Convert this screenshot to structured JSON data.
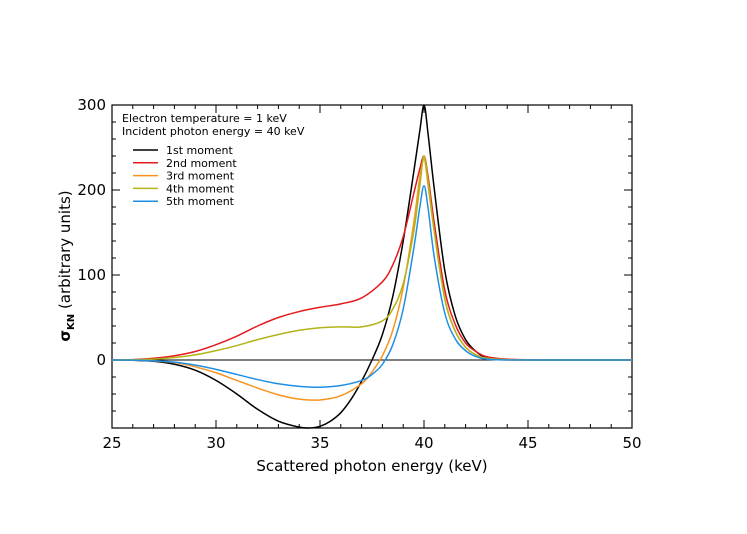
{
  "chart_data": {
    "type": "line",
    "xlabel": "Scattered photon energy (keV)",
    "ylabel": "σ",
    "ylabel_sub": "KN",
    "ylabel_rest": " (arbitrary units)",
    "xlim": [
      25,
      50
    ],
    "ylim": [
      -80,
      300
    ],
    "xticks": [
      25,
      30,
      35,
      40,
      45,
      50
    ],
    "yticks": [
      0,
      100,
      200,
      300
    ],
    "annotations": [
      "Electron temperature = 1 keV",
      "Incident photon energy = 40 keV"
    ],
    "zero_line": true,
    "grid": false,
    "legend_position": "top-left",
    "series": [
      {
        "name": "1st moment",
        "color": "#000000",
        "x": [
          25,
          26,
          27,
          28,
          29,
          30,
          31,
          32,
          33,
          34,
          34.5,
          35,
          35.5,
          36,
          36.5,
          37,
          37.5,
          38,
          38.5,
          39,
          39.5,
          39.8,
          40,
          40.2,
          40.5,
          41,
          41.5,
          42,
          42.5,
          43,
          44,
          46,
          50
        ],
        "y": [
          0,
          -0.3,
          -1.5,
          -5,
          -12,
          -24,
          -40,
          -58,
          -72,
          -79,
          -80,
          -78,
          -72,
          -62,
          -46,
          -25,
          0,
          30,
          75,
          140,
          220,
          270,
          300,
          265,
          200,
          105,
          52,
          24,
          10,
          3,
          0.5,
          0,
          0
        ]
      },
      {
        "name": "2nd moment",
        "color": "#e41a1c",
        "x": [
          25,
          26,
          27,
          28,
          29,
          30,
          31,
          32,
          33,
          34,
          35,
          36,
          37,
          38,
          38.5,
          39,
          39.5,
          39.8,
          40,
          40.2,
          40.5,
          41,
          41.5,
          42,
          42.5,
          43,
          44,
          46,
          50
        ],
        "y": [
          0,
          0.5,
          2,
          5,
          10,
          18,
          28,
          40,
          50,
          57,
          62,
          66,
          73,
          92,
          112,
          145,
          195,
          225,
          240,
          215,
          160,
          82,
          42,
          20,
          10,
          4,
          1,
          0,
          0
        ]
      },
      {
        "name": "3rd moment",
        "color": "#f7941d",
        "x": [
          25,
          26,
          27,
          28,
          29,
          30,
          31,
          32,
          33,
          34,
          35,
          36,
          37,
          37.5,
          38,
          38.5,
          39,
          39.5,
          39.8,
          40,
          40.2,
          40.5,
          41,
          41.5,
          42,
          42.5,
          43,
          44,
          46,
          50
        ],
        "y": [
          0,
          -0.2,
          -1,
          -3,
          -8,
          -15,
          -24,
          -33,
          -41,
          -46,
          -47,
          -42,
          -28,
          -14,
          5,
          35,
          85,
          160,
          215,
          236,
          205,
          150,
          72,
          34,
          15,
          6,
          2,
          0,
          0,
          0
        ]
      },
      {
        "name": "4th moment",
        "color": "#b3b31a",
        "x": [
          25,
          26,
          27,
          28,
          29,
          30,
          31,
          32,
          33,
          34,
          35,
          36,
          37,
          38,
          38.5,
          39,
          39.5,
          39.8,
          40,
          40.2,
          40.5,
          41,
          41.5,
          42,
          42.5,
          43,
          44,
          46,
          50
        ],
        "y": [
          0,
          0.3,
          1,
          3,
          6,
          11,
          17,
          24,
          30,
          35,
          38,
          39,
          39,
          46,
          60,
          90,
          150,
          205,
          240,
          210,
          150,
          72,
          34,
          15,
          6,
          2,
          0.5,
          0,
          0
        ]
      },
      {
        "name": "5th moment",
        "color": "#1f8fe6",
        "x": [
          25,
          26,
          27,
          28,
          29,
          30,
          31,
          32,
          33,
          34,
          35,
          36,
          37,
          37.5,
          38,
          38.5,
          39,
          39.5,
          39.8,
          40,
          40.2,
          40.5,
          41,
          41.5,
          42,
          42.5,
          43,
          44,
          46,
          50
        ],
        "y": [
          0,
          -0.2,
          -1,
          -2.5,
          -6,
          -11,
          -17,
          -23,
          -28,
          -31,
          -32,
          -30,
          -24,
          -17,
          -5,
          18,
          60,
          130,
          180,
          205,
          178,
          120,
          55,
          25,
          11,
          4,
          1,
          0,
          0,
          0
        ]
      }
    ]
  }
}
